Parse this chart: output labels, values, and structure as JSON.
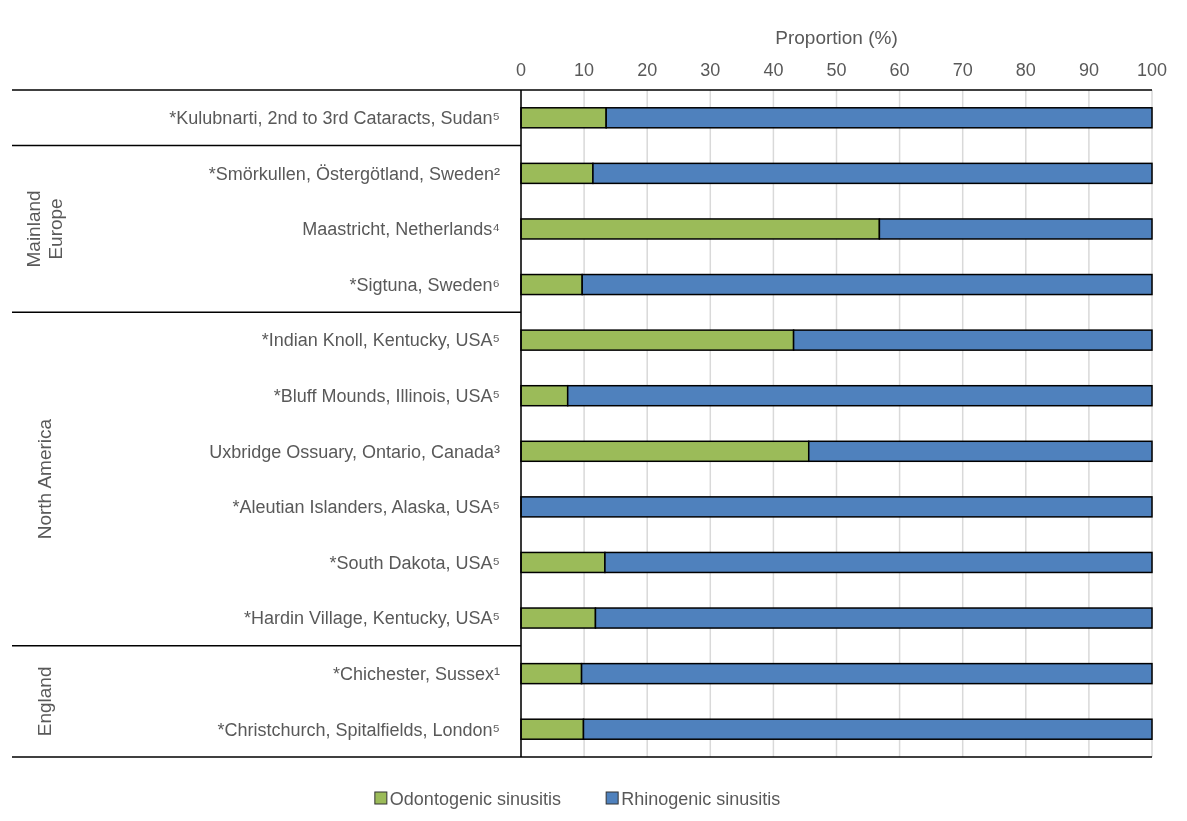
{
  "chart_data": {
    "type": "bar",
    "orientation": "horizontal",
    "stacked": true,
    "xlabel": "Proportion (%)",
    "categories": [
      "*Kulubnarti, 2nd to 3rd Cataracts, Sudan⁵",
      "*Smörkullen, Östergötland, Sweden²",
      "Maastricht, Netherlands⁴",
      "*Sigtuna, Sweden⁶",
      "*Indian Knoll, Kentucky, USA⁵",
      "*Bluff Mounds, Illinois, USA⁵",
      "Uxbridge Ossuary, Ontario, Canada³",
      "*Aleutian Islanders, Alaska, USA⁵",
      "*South Dakota, USA⁵",
      "*Hardin Village, Kentucky, USA⁵",
      "*Chichester, Sussex¹",
      "*Christchurch, Spitalfields, London⁵"
    ],
    "series": [
      {
        "name": "Odontogenic sinusitis",
        "color": "#9bbb59",
        "values": [
          13.5,
          11.4,
          56.8,
          9.7,
          43.2,
          7.4,
          45.6,
          0,
          13.3,
          11.8,
          9.6,
          9.9
        ]
      },
      {
        "name": "Rhinogenic sinusitis",
        "color": "#4f81bd",
        "values": [
          86.5,
          88.6,
          43.2,
          90.3,
          56.8,
          92.6,
          54.4,
          100,
          86.7,
          88.2,
          90.4,
          90.1
        ]
      }
    ],
    "xlim": [
      0,
      100
    ],
    "xticks": [
      0,
      10,
      20,
      30,
      40,
      50,
      60,
      70,
      80,
      90,
      100
    ],
    "grid": "x",
    "legend": "bottom",
    "annotations": [
      "Mainland\nEurope",
      "North America",
      "England"
    ]
  }
}
